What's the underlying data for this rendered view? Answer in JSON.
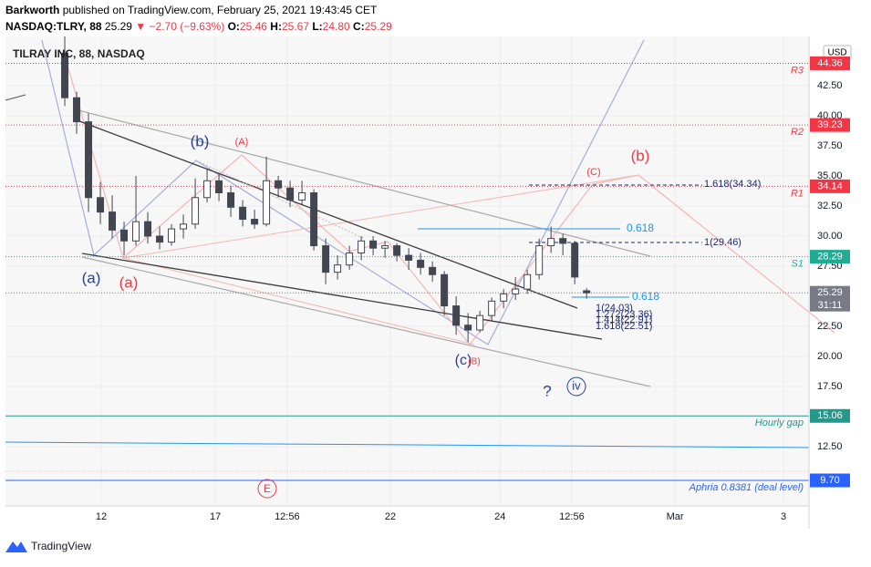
{
  "header": {
    "author": "Barkworth",
    "published": "published on TradingView.com, February 25, 2021 19:43:45 CET",
    "symbol": "NASDAQ:TLRY, 88",
    "last": "25.29",
    "change": "▼ −2.70 (−9.63%)",
    "o_label": "O:",
    "o": "25.46",
    "h_label": "H:",
    "h": "25.67",
    "l_label": "L:",
    "l": "24.80",
    "c_label": "C:",
    "c": "25.29"
  },
  "footer": "TradingView",
  "chart_data": {
    "type": "candlestick",
    "title": "TILRAY INC, 88, NASDAQ",
    "currency": "USD",
    "countdown": "31:11",
    "x": [
      10,
      12,
      14,
      16,
      18,
      20,
      22,
      24,
      26,
      28,
      30,
      32,
      34,
      36,
      38,
      40,
      42,
      44,
      46,
      48,
      50,
      52,
      54,
      56,
      58,
      60,
      62,
      64,
      66,
      68,
      70,
      72,
      74,
      76,
      78,
      80,
      82,
      84,
      86,
      88,
      90,
      92,
      94,
      96,
      98
    ],
    "open": [
      45.2,
      41.5,
      39.5,
      33.2,
      32.0,
      30.5,
      29.6,
      31.2,
      30.0,
      29.5,
      30.6,
      31.0,
      33.2,
      34.6,
      33.6,
      32.4,
      31.4,
      31.0,
      34.6,
      34.0,
      33.0,
      33.6,
      29.2,
      27.0,
      27.6,
      28.6,
      29.6,
      29.0,
      29.2,
      28.4,
      28.0,
      27.4,
      26.8,
      24.2,
      22.6,
      22.2,
      23.4,
      24.6,
      25.2,
      25.6,
      26.8,
      29.2,
      29.8,
      29.4,
      25.46
    ],
    "high": [
      46.6,
      42.0,
      40.2,
      34.5,
      33.4,
      31.2,
      35.0,
      32.0,
      30.8,
      31.0,
      31.8,
      34.8,
      35.6,
      35.2,
      34.2,
      33.0,
      32.2,
      36.6,
      35.0,
      34.6,
      34.6,
      33.9,
      29.8,
      28.4,
      29.2,
      30.0,
      30.0,
      29.6,
      29.4,
      29.0,
      28.6,
      27.9,
      27.1,
      25.0,
      23.6,
      23.8,
      24.9,
      25.6,
      26.6,
      27.2,
      29.8,
      30.8,
      30.2,
      29.6,
      25.67
    ],
    "low": [
      40.8,
      38.5,
      32.0,
      31.0,
      29.8,
      28.4,
      29.2,
      29.4,
      28.9,
      29.2,
      29.8,
      30.6,
      32.8,
      32.9,
      31.6,
      30.8,
      30.6,
      30.8,
      33.2,
      32.4,
      32.6,
      28.8,
      26.0,
      26.4,
      27.2,
      28.0,
      28.4,
      28.2,
      27.9,
      27.2,
      26.8,
      26.2,
      23.4,
      21.8,
      21.2,
      22.0,
      23.0,
      24.0,
      24.7,
      25.2,
      26.4,
      28.6,
      28.4,
      26.0,
      24.8
    ],
    "close": [
      41.5,
      39.5,
      33.2,
      32.0,
      30.5,
      29.6,
      31.2,
      30.0,
      29.5,
      30.6,
      31.0,
      33.2,
      34.6,
      33.6,
      32.4,
      31.4,
      31.0,
      34.6,
      34.0,
      33.0,
      33.6,
      29.2,
      27.0,
      27.6,
      28.6,
      29.6,
      29.0,
      29.2,
      28.4,
      28.0,
      27.4,
      26.8,
      24.2,
      22.6,
      22.2,
      23.4,
      24.6,
      25.2,
      25.6,
      26.8,
      29.2,
      29.8,
      29.4,
      26.6,
      25.29
    ],
    "up_color": "#ffffff",
    "down_color": "#434651",
    "xlim": [
      0,
      135.5
    ],
    "xticks": [
      {
        "value": 16.15,
        "label": "12"
      },
      {
        "value": 35.4,
        "label": "17"
      },
      {
        "value": 47.5,
        "label": "12:56"
      },
      {
        "value": 64.9,
        "label": "22"
      },
      {
        "value": 83.4,
        "label": "24"
      },
      {
        "value": 95.5,
        "label": "12:56"
      },
      {
        "value": 112.9,
        "label": "Mar"
      },
      {
        "value": 131.2,
        "label": "3"
      }
    ],
    "ylim": [
      7.58,
      46.59
    ],
    "yticks": [
      {
        "value": 42.5,
        "label": "42.50"
      },
      {
        "value": 40,
        "label": "40.00"
      },
      {
        "value": 37.5,
        "label": "37.50"
      },
      {
        "value": 35,
        "label": "35.00"
      },
      {
        "value": 32.5,
        "label": "32.50"
      },
      {
        "value": 30,
        "label": "30.00"
      },
      {
        "value": 27.5,
        "label": "27.50"
      },
      {
        "value": 22.5,
        "label": "22.50"
      },
      {
        "value": 20,
        "label": "20.00"
      },
      {
        "value": 17.5,
        "label": "17.50"
      },
      {
        "value": 12.5,
        "label": "12.50"
      }
    ],
    "levels": [
      {
        "name": "R3",
        "value": 44.36,
        "value_label": "44.36",
        "color": "#f23645",
        "style": "dotted"
      },
      {
        "name": "R2",
        "value": 39.23,
        "value_label": "39.23",
        "color": "#f23645",
        "style": "dotted"
      },
      {
        "name": "R1",
        "value": 34.14,
        "value_label": "34.14",
        "color": "#f23645",
        "style": "dotted"
      },
      {
        "name": "S1",
        "value": 28.29,
        "value_label": "28.29",
        "color": "#22ab94",
        "style": "dotted"
      },
      {
        "value": 25.29,
        "value_label": "25.29",
        "color": "#787b86",
        "style": "dotted"
      },
      {
        "name": "Hourly gap",
        "value": 15.06,
        "value_label": "15.06",
        "color": "#22998a",
        "style": "solid"
      },
      {
        "name": "Aphria 0.8381 (deal level)",
        "value": 9.7,
        "value_label": "9.70",
        "color": "#2962ff",
        "style": "solid"
      }
    ],
    "annotations": [
      {
        "text": "(a)",
        "color": "#2a3f8f"
      },
      {
        "text": "(a)",
        "color": "#f23645"
      },
      {
        "text": "(b)",
        "color": "#2a3f8f"
      },
      {
        "text": "(A)",
        "color": "#f23645"
      },
      {
        "text": "(C)",
        "color": "#f23645"
      },
      {
        "text": "(b)",
        "color": "#f23645"
      },
      {
        "text": "(c)",
        "color": "#2a3f8f"
      },
      {
        "text": "(B)",
        "color": "#f23645"
      },
      {
        "text": "?",
        "color": "#2a3f8f"
      },
      {
        "text": "iv",
        "color": "#2a3f8f"
      },
      {
        "text": "E",
        "color": "#f23645"
      },
      {
        "text": "0.618",
        "color": "#2196f3"
      },
      {
        "text": "1.618(34.34)",
        "color": "#1e2a6e"
      },
      {
        "text": "1(29.46)",
        "color": "#1e2a6e"
      },
      {
        "text": "0.618",
        "color": "#2196f3"
      },
      {
        "text": "1(24.03)",
        "color": "#1e2a6e"
      },
      {
        "text": "1.272(23.36)",
        "color": "#1e2a6e"
      },
      {
        "text": "1.414(22.91)",
        "color": "#1e2a6e"
      },
      {
        "text": "1.618(22.51)",
        "color": "#1e2a6e"
      }
    ]
  }
}
